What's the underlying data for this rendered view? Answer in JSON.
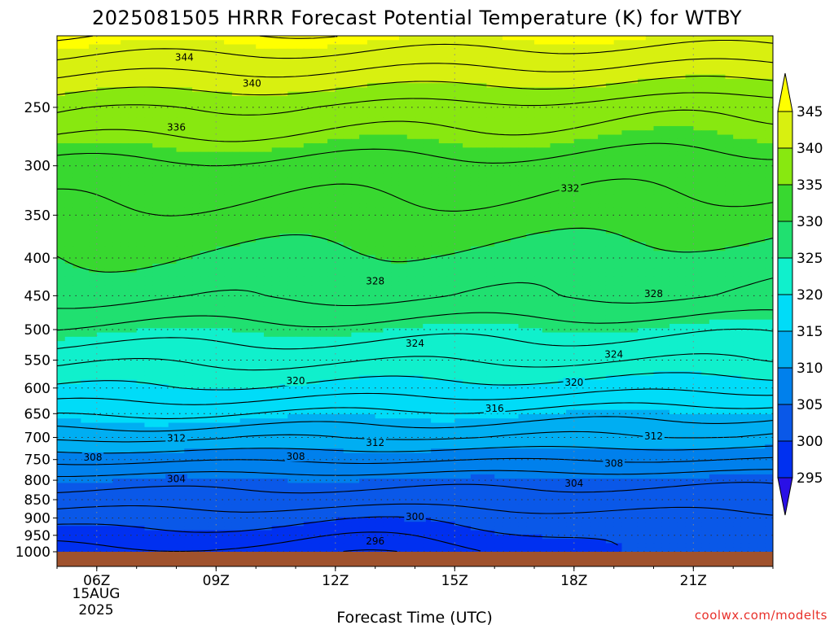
{
  "chart_data": {
    "type": "contour",
    "title": "2025081505 HRRR Forecast Potential Temperature (K) for WTBY",
    "xlabel": "Forecast Time (UTC)",
    "ylabel": "",
    "credit": "coolwx.com/modelts",
    "x_ticks": [
      "06Z",
      "09Z",
      "12Z",
      "15Z",
      "18Z",
      "21Z"
    ],
    "x_tick_hours": [
      6,
      9,
      12,
      15,
      18,
      21
    ],
    "x_date_lines": [
      "15AUG",
      "2025"
    ],
    "xlim_hours": [
      5,
      23
    ],
    "y_ticks": [
      250,
      300,
      350,
      400,
      450,
      500,
      550,
      600,
      650,
      700,
      750,
      800,
      850,
      900,
      950,
      1000
    ],
    "ylim_hpa": [
      200,
      1000
    ],
    "y_scale": "log",
    "grid": true,
    "colorbar": {
      "levels": [
        295,
        300,
        305,
        310,
        315,
        320,
        325,
        330,
        335,
        340,
        345
      ],
      "labels": [
        "295",
        "300",
        "305",
        "310",
        "315",
        "320",
        "325",
        "330",
        "335",
        "340",
        "345"
      ],
      "colors": [
        "#2a10e6",
        "#0030f0",
        "#0a58e8",
        "#0080ec",
        "#00aef2",
        "#00dcf8",
        "#10f0cc",
        "#20e070",
        "#38d830",
        "#88e810",
        "#d8f010",
        "#ffff00"
      ]
    },
    "contour_levels": [
      296,
      298,
      300,
      302,
      304,
      306,
      308,
      310,
      312,
      314,
      316,
      318,
      320,
      322,
      324,
      326,
      328,
      330,
      332,
      334,
      336,
      338,
      340,
      342,
      344,
      346
    ],
    "contour_labels": [
      {
        "text": "344",
        "hour": 8.2,
        "p": 214
      },
      {
        "text": "340",
        "hour": 9.9,
        "p": 232
      },
      {
        "text": "336",
        "hour": 8.0,
        "p": 266
      },
      {
        "text": "332",
        "hour": 17.9,
        "p": 322
      },
      {
        "text": "328",
        "hour": 13.0,
        "p": 430
      },
      {
        "text": "328",
        "hour": 20.0,
        "p": 447
      },
      {
        "text": "324",
        "hour": 14.0,
        "p": 522
      },
      {
        "text": "324",
        "hour": 19.0,
        "p": 540
      },
      {
        "text": "320",
        "hour": 11.0,
        "p": 587
      },
      {
        "text": "320",
        "hour": 18.0,
        "p": 590
      },
      {
        "text": "316",
        "hour": 16.0,
        "p": 640
      },
      {
        "text": "312",
        "hour": 8.0,
        "p": 702
      },
      {
        "text": "312",
        "hour": 13.0,
        "p": 712
      },
      {
        "text": "312",
        "hour": 20.0,
        "p": 697
      },
      {
        "text": "308",
        "hour": 5.9,
        "p": 745
      },
      {
        "text": "308",
        "hour": 11.0,
        "p": 743
      },
      {
        "text": "308",
        "hour": 19.0,
        "p": 759
      },
      {
        "text": "304",
        "hour": 8.0,
        "p": 797
      },
      {
        "text": "304",
        "hour": 18.0,
        "p": 808
      },
      {
        "text": "300",
        "hour": 14.0,
        "p": 897
      },
      {
        "text": "296",
        "hour": 13.0,
        "p": 968
      }
    ],
    "theta_profile_start": [
      [
        200,
        346
      ],
      [
        250,
        338.5
      ],
      [
        300,
        333.5
      ],
      [
        350,
        331.5
      ],
      [
        400,
        330
      ],
      [
        450,
        328.5
      ],
      [
        500,
        325.5
      ],
      [
        550,
        322.5
      ],
      [
        600,
        320
      ],
      [
        650,
        316.5
      ],
      [
        700,
        312.5
      ],
      [
        750,
        308.5
      ],
      [
        800,
        305
      ],
      [
        850,
        303
      ],
      [
        900,
        301
      ],
      [
        950,
        299
      ],
      [
        1000,
        297
      ]
    ],
    "theta_profile_end": [
      [
        200,
        345
      ],
      [
        250,
        336.5
      ],
      [
        300,
        333
      ],
      [
        350,
        331
      ],
      [
        400,
        329
      ],
      [
        450,
        328
      ],
      [
        500,
        324.5
      ],
      [
        550,
        322
      ],
      [
        600,
        318.5
      ],
      [
        650,
        314.5
      ],
      [
        700,
        311.5
      ],
      [
        750,
        308
      ],
      [
        800,
        304.5
      ],
      [
        850,
        303
      ],
      [
        900,
        301.5
      ],
      [
        950,
        301
      ],
      [
        1000,
        301
      ]
    ],
    "ground_color": "#a0522d"
  }
}
